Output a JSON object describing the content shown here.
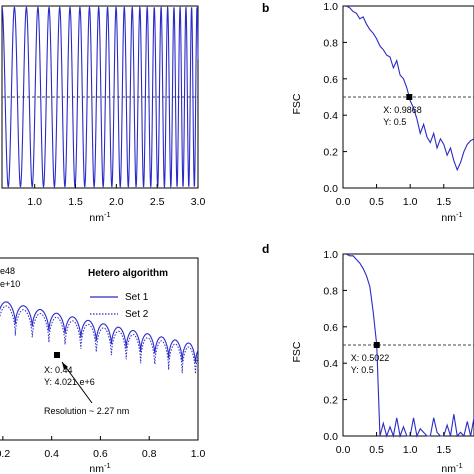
{
  "colors": {
    "curve": "#2b2bc8",
    "refline": "#444444",
    "axis": "#000000"
  },
  "chart_data": [
    {
      "id": "a",
      "type": "line",
      "xlabel": "nm-1",
      "x_ticks": [
        "1.0",
        "1.5",
        "2.0",
        "2.5",
        "3.0"
      ],
      "xlim": [
        0.6,
        3.0
      ],
      "ylim": [
        -1,
        1
      ],
      "reference_line_y": 0,
      "series": [
        {
          "style": "solid",
          "description": "chirped oscillation, frequency increases with x",
          "start_period": 0.155,
          "end_period": 0.065
        }
      ]
    },
    {
      "id": "b",
      "type": "line",
      "panel_label": "b",
      "xlabel": "nm-1",
      "ylabel": "FSC",
      "x_ticks": [
        "0.0",
        "0.5",
        "1.0",
        "1.5"
      ],
      "y_ticks": [
        "0.0",
        "0.2",
        "0.4",
        "0.6",
        "0.8",
        "1.0"
      ],
      "xlim": [
        0,
        1.95
      ],
      "ylim": [
        0,
        1
      ],
      "reference_line_y": 0.5,
      "marker": {
        "x": 0.9868,
        "y": 0.5,
        "label_x": "X: 0.9868",
        "label_y": "Y: 0.5"
      },
      "series": [
        {
          "style": "solid",
          "x": [
            0.0,
            0.05,
            0.1,
            0.15,
            0.2,
            0.25,
            0.3,
            0.35,
            0.4,
            0.45,
            0.5,
            0.55,
            0.6,
            0.65,
            0.7,
            0.75,
            0.8,
            0.85,
            0.9,
            0.95,
            0.9868,
            1.0,
            1.05,
            1.1,
            1.15,
            1.2,
            1.25,
            1.3,
            1.35,
            1.4,
            1.45,
            1.5,
            1.55,
            1.6,
            1.65,
            1.7,
            1.75,
            1.8,
            1.85,
            1.9,
            1.95
          ],
          "y": [
            1.0,
            1.0,
            0.99,
            0.97,
            0.96,
            0.93,
            0.94,
            0.9,
            0.87,
            0.85,
            0.82,
            0.78,
            0.76,
            0.73,
            0.72,
            0.66,
            0.7,
            0.62,
            0.6,
            0.55,
            0.5,
            0.48,
            0.44,
            0.38,
            0.3,
            0.35,
            0.28,
            0.25,
            0.3,
            0.22,
            0.27,
            0.24,
            0.18,
            0.22,
            0.15,
            0.1,
            0.14,
            0.2,
            0.24,
            0.26,
            0.27
          ]
        }
      ]
    },
    {
      "id": "c",
      "type": "line",
      "xlabel": "nm-1",
      "x_ticks": [
        "0.2",
        "0.4",
        "0.6",
        "0.8",
        "1.0"
      ],
      "xlim": [
        0.18,
        1.0
      ],
      "ylim": [
        0,
        1
      ],
      "partial_labels": [
        "e48",
        "e+10"
      ],
      "legend": {
        "title": "Hetero algorithm",
        "entries": [
          {
            "name": "Set 1",
            "style": "solid"
          },
          {
            "name": "Set 2",
            "style": "dotted"
          }
        ]
      },
      "marker": {
        "x": 0.44,
        "label_x": "X: 0.44",
        "label_y": "Y: 4.021 e+6"
      },
      "annotation": "Resolution ~ 2.27 nm"
    },
    {
      "id": "d",
      "type": "line",
      "panel_label": "d",
      "xlabel": "nm-1",
      "ylabel": "FSC",
      "x_ticks": [
        "0.0",
        "0.5",
        "1.0",
        "1.5"
      ],
      "y_ticks": [
        "0.0",
        "0.2",
        "0.4",
        "0.6",
        "0.8",
        "1.0"
      ],
      "xlim": [
        0,
        1.95
      ],
      "ylim": [
        0,
        1
      ],
      "reference_line_y": 0.5,
      "marker": {
        "x": 0.5022,
        "y": 0.5,
        "label_x": "X: 0.5022",
        "label_y": "Y: 0.5"
      },
      "series": [
        {
          "style": "solid",
          "x": [
            0.0,
            0.05,
            0.1,
            0.15,
            0.2,
            0.25,
            0.3,
            0.35,
            0.4,
            0.45,
            0.5022,
            0.55,
            0.6,
            0.65,
            0.7,
            0.75,
            0.8,
            0.85,
            0.9,
            0.95,
            1.0,
            1.05,
            1.1,
            1.15,
            1.2,
            1.25,
            1.3,
            1.35,
            1.4,
            1.45,
            1.5,
            1.55,
            1.6,
            1.65,
            1.7,
            1.75,
            1.8,
            1.85,
            1.9,
            1.95
          ],
          "y": [
            1.0,
            1.0,
            0.99,
            0.99,
            0.97,
            0.95,
            0.92,
            0.88,
            0.82,
            0.68,
            0.5,
            0.0,
            0.07,
            0.0,
            0.05,
            0.0,
            0.1,
            0.0,
            0.05,
            0.0,
            0.0,
            0.1,
            0.0,
            0.04,
            0.02,
            0.0,
            0.0,
            0.1,
            0.02,
            0.0,
            0.0,
            0.06,
            0.0,
            0.12,
            0.0,
            0.02,
            0.0,
            0.08,
            0.0,
            0.1
          ]
        }
      ]
    }
  ]
}
